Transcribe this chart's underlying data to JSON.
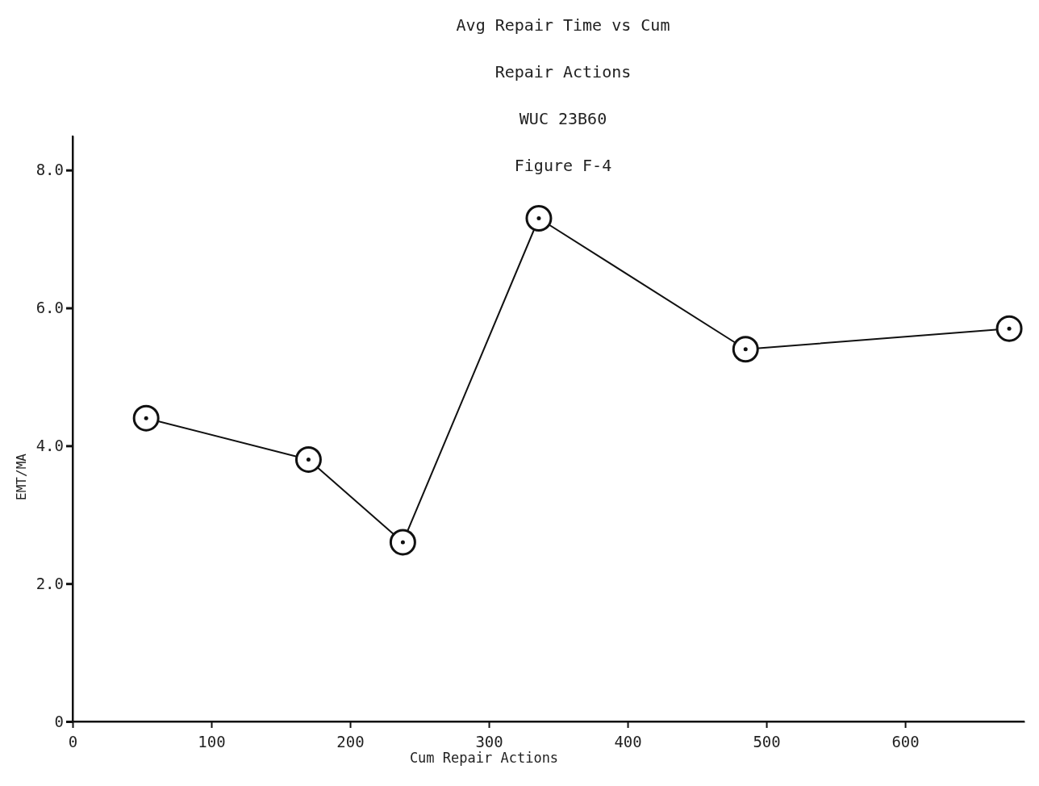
{
  "chart_data": {
    "type": "line",
    "title": "Avg Repair Time vs Cum Repair Actions",
    "subtitle": "WUC 23B60",
    "annotations": [
      "Figure F-4"
    ],
    "xlabel": "Cum Repair Actions",
    "ylabel": "EMT/MA",
    "x": [
      53,
      170,
      238,
      336,
      485,
      675
    ],
    "series": [
      {
        "color": "#111111",
        "values": [
          4.4,
          3.8,
          2.6,
          7.3,
          5.4,
          5.7
        ]
      }
    ],
    "xlim": [
      0,
      686
    ],
    "xticks": [
      0,
      100,
      200,
      300,
      400,
      500,
      600
    ],
    "ylim": [
      0,
      8.5
    ],
    "yticks": [
      0,
      {
        "value": 2,
        "label": "2.0"
      },
      {
        "value": 4,
        "label": "4.0"
      },
      {
        "value": 6,
        "label": "6.0"
      },
      {
        "value": 8,
        "label": "8.0"
      }
    ],
    "marker": "circle",
    "line_style": "solid",
    "grid": false
  }
}
